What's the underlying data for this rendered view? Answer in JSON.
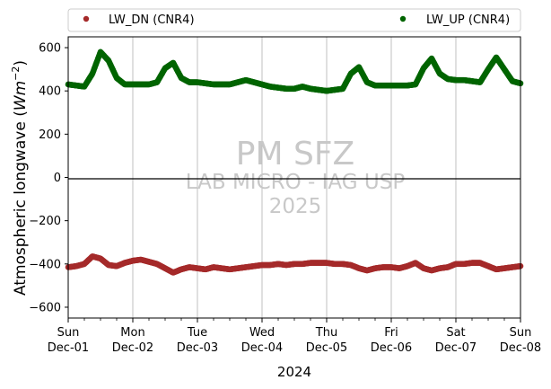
{
  "chart_data": {
    "type": "scatter",
    "xlabel": "2024",
    "ylabel": "Atmospheric longwave (",
    "ylabel_unit_base": "W",
    "ylabel_unit_m": "m",
    "ylabel_unit_exp": "−2",
    "ylabel_close": ")",
    "ylim": [
      -650,
      650
    ],
    "yticks": [
      -600,
      -400,
      -200,
      0,
      200,
      400,
      600
    ],
    "ytick_labels": [
      "−600",
      "−400",
      "−200",
      "0",
      "200",
      "400",
      "600"
    ],
    "xlim": [
      "2024-12-01",
      "2024-12-08"
    ],
    "xticks": [
      {
        "day": "Sun",
        "date": "Dec-01"
      },
      {
        "day": "Mon",
        "date": "Dec-02"
      },
      {
        "day": "Tue",
        "date": "Dec-03"
      },
      {
        "day": "Wed",
        "date": "Dec-04"
      },
      {
        "day": "Thu",
        "date": "Dec-05"
      },
      {
        "day": "Fri",
        "date": "Dec-06"
      },
      {
        "day": "Sat",
        "date": "Dec-07"
      },
      {
        "day": "Sun",
        "date": "Dec-08"
      }
    ],
    "grid": "vertical",
    "zero_line": true,
    "legend_placement": "top, above plot",
    "series": [
      {
        "name": "LW_DN (CNR4)",
        "color": "#a52a2a",
        "x": [
          "2024-12-01 00:00",
          "2024-12-01 03:00",
          "2024-12-01 06:00",
          "2024-12-01 09:00",
          "2024-12-01 12:00",
          "2024-12-01 15:00",
          "2024-12-01 18:00",
          "2024-12-01 21:00",
          "2024-12-02 00:00",
          "2024-12-02 03:00",
          "2024-12-02 06:00",
          "2024-12-02 09:00",
          "2024-12-02 12:00",
          "2024-12-02 15:00",
          "2024-12-02 18:00",
          "2024-12-02 21:00",
          "2024-12-03 00:00",
          "2024-12-03 03:00",
          "2024-12-03 06:00",
          "2024-12-03 09:00",
          "2024-12-03 12:00",
          "2024-12-03 15:00",
          "2024-12-03 18:00",
          "2024-12-03 21:00",
          "2024-12-04 00:00",
          "2024-12-04 03:00",
          "2024-12-04 06:00",
          "2024-12-04 09:00",
          "2024-12-04 12:00",
          "2024-12-04 15:00",
          "2024-12-04 18:00",
          "2024-12-04 21:00",
          "2024-12-05 00:00",
          "2024-12-05 03:00",
          "2024-12-05 06:00",
          "2024-12-05 09:00",
          "2024-12-05 12:00",
          "2024-12-05 15:00",
          "2024-12-05 18:00",
          "2024-12-05 21:00",
          "2024-12-06 00:00",
          "2024-12-06 03:00",
          "2024-12-06 06:00",
          "2024-12-06 09:00",
          "2024-12-06 12:00",
          "2024-12-06 15:00",
          "2024-12-06 18:00",
          "2024-12-06 21:00",
          "2024-12-07 00:00",
          "2024-12-07 03:00",
          "2024-12-07 06:00",
          "2024-12-07 09:00",
          "2024-12-07 12:00",
          "2024-12-07 15:00",
          "2024-12-07 18:00",
          "2024-12-07 21:00",
          "2024-12-08 00:00"
        ],
        "y": [
          -415,
          -410,
          -400,
          -365,
          -375,
          -405,
          -410,
          -395,
          -385,
          -380,
          -390,
          -400,
          -420,
          -440,
          -425,
          -415,
          -420,
          -425,
          -415,
          -420,
          -425,
          -420,
          -415,
          -410,
          -405,
          -405,
          -400,
          -405,
          -400,
          -400,
          -395,
          -395,
          -395,
          -400,
          -400,
          -405,
          -420,
          -430,
          -420,
          -415,
          -415,
          -420,
          -410,
          -395,
          -420,
          -430,
          -420,
          -415,
          -400,
          -400,
          -395,
          -395,
          -410,
          -425,
          -420,
          -415,
          -410
        ]
      },
      {
        "name": "LW_UP (CNR4)",
        "color": "#006400",
        "x": [
          "2024-12-01 00:00",
          "2024-12-01 03:00",
          "2024-12-01 06:00",
          "2024-12-01 09:00",
          "2024-12-01 12:00",
          "2024-12-01 15:00",
          "2024-12-01 18:00",
          "2024-12-01 21:00",
          "2024-12-02 00:00",
          "2024-12-02 03:00",
          "2024-12-02 06:00",
          "2024-12-02 09:00",
          "2024-12-02 12:00",
          "2024-12-02 15:00",
          "2024-12-02 18:00",
          "2024-12-02 21:00",
          "2024-12-03 00:00",
          "2024-12-03 03:00",
          "2024-12-03 06:00",
          "2024-12-03 09:00",
          "2024-12-03 12:00",
          "2024-12-03 15:00",
          "2024-12-03 18:00",
          "2024-12-03 21:00",
          "2024-12-04 00:00",
          "2024-12-04 03:00",
          "2024-12-04 06:00",
          "2024-12-04 09:00",
          "2024-12-04 12:00",
          "2024-12-04 15:00",
          "2024-12-04 18:00",
          "2024-12-04 21:00",
          "2024-12-05 00:00",
          "2024-12-05 03:00",
          "2024-12-05 06:00",
          "2024-12-05 09:00",
          "2024-12-05 12:00",
          "2024-12-05 15:00",
          "2024-12-05 18:00",
          "2024-12-05 21:00",
          "2024-12-06 00:00",
          "2024-12-06 03:00",
          "2024-12-06 06:00",
          "2024-12-06 09:00",
          "2024-12-06 12:00",
          "2024-12-06 15:00",
          "2024-12-06 18:00",
          "2024-12-06 21:00",
          "2024-12-07 00:00",
          "2024-12-07 03:00",
          "2024-12-07 06:00",
          "2024-12-07 09:00",
          "2024-12-07 12:00",
          "2024-12-07 15:00",
          "2024-12-07 18:00",
          "2024-12-07 21:00",
          "2024-12-08 00:00"
        ],
        "y": [
          430,
          425,
          420,
          480,
          580,
          540,
          460,
          430,
          430,
          430,
          430,
          440,
          505,
          530,
          460,
          440,
          440,
          435,
          430,
          430,
          430,
          440,
          450,
          440,
          430,
          420,
          415,
          410,
          410,
          420,
          410,
          405,
          400,
          405,
          410,
          480,
          510,
          440,
          425,
          425,
          425,
          425,
          425,
          430,
          505,
          550,
          480,
          455,
          450,
          450,
          445,
          440,
          500,
          555,
          500,
          445,
          435
        ]
      }
    ]
  },
  "watermark": {
    "line1": "PM SFZ",
    "line2": "LAB MICRO - IAG USP",
    "line3": "2025"
  }
}
